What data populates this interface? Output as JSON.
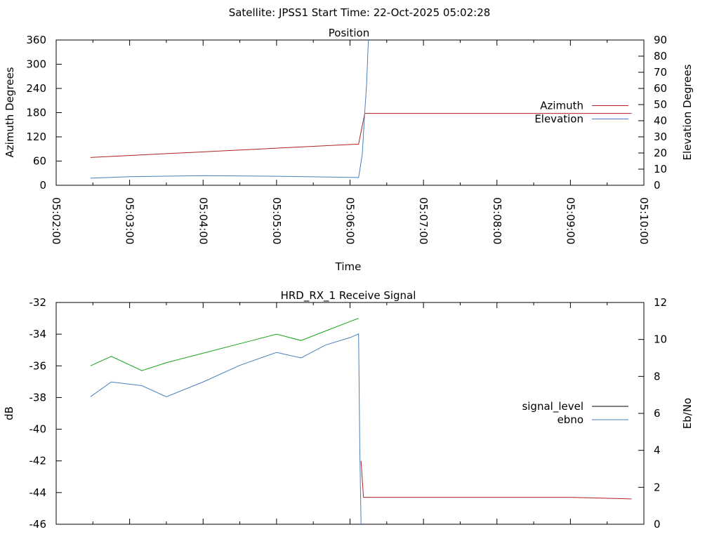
{
  "header": {
    "title": "Satellite: JPSS1    Start Time: 22-Oct-2025 05:02:28"
  },
  "chart_data": [
    {
      "type": "line",
      "title": "Position",
      "xlabel": "Time",
      "x_ticks": [
        "05:02:00",
        "05:03:00",
        "05:04:00",
        "05:05:00",
        "05:06:00",
        "05:07:00",
        "05:08:00",
        "05:09:00",
        "05:10:00"
      ],
      "xlim": [
        "05:02:00",
        "05:10:00"
      ],
      "y_left": {
        "label": "Azimuth Degrees",
        "range": [
          0,
          360
        ],
        "ticks": [
          0,
          60,
          120,
          180,
          240,
          300,
          360
        ]
      },
      "y_right": {
        "label": "Elevation Degrees",
        "range": [
          0,
          90
        ],
        "ticks": [
          0,
          10,
          20,
          30,
          40,
          50,
          60,
          70,
          80,
          90
        ]
      },
      "legend_position": "right",
      "series": [
        {
          "name": "Azimuth",
          "axis": "left",
          "color": "#b22222",
          "points": [
            [
              "05:02:28",
              69
            ],
            [
              "05:06:07",
              102
            ],
            [
              "05:06:12",
              178
            ],
            [
              "05:09:50",
              178
            ]
          ]
        },
        {
          "name": "Elevation",
          "axis": "right",
          "color": "#4a7ebb",
          "points": [
            [
              "05:02:28",
              4.4
            ],
            [
              "05:03:00",
              5.3
            ],
            [
              "05:04:00",
              6.0
            ],
            [
              "05:05:00",
              5.6
            ],
            [
              "05:06:07",
              4.8
            ],
            [
              "05:06:10",
              19
            ],
            [
              "05:06:12",
              45
            ],
            [
              "05:06:13.5",
              62
            ],
            [
              "05:06:15",
              90
            ]
          ]
        }
      ]
    },
    {
      "type": "line",
      "title": "HRD_RX_1 Receive Signal",
      "xlim": [
        "05:02:00",
        "05:10:00"
      ],
      "y_left": {
        "label": "dB",
        "range": [
          -46,
          -32
        ],
        "ticks": [
          -46,
          -44,
          -42,
          -40,
          -38,
          -36,
          -34,
          -32
        ]
      },
      "y_right": {
        "label": "Eb/No",
        "range": [
          0,
          12
        ],
        "ticks": [
          0,
          2,
          4,
          6,
          8,
          10,
          12
        ]
      },
      "legend_position": "right",
      "series": [
        {
          "name": "signal_level",
          "axis": "left",
          "color": "#000000",
          "legend_color": "#000000",
          "points": [
            [
              "05:02:28",
              -36.0
            ],
            [
              "05:02:45",
              -35.4
            ],
            [
              "05:03:10",
              -36.3
            ],
            [
              "05:03:30",
              -35.8
            ],
            [
              "05:04:00",
              -35.2
            ],
            [
              "05:04:30",
              -34.6
            ],
            [
              "05:05:00",
              -34.0
            ],
            [
              "05:05:20",
              -34.4
            ],
            [
              "05:05:40",
              -33.8
            ],
            [
              "05:06:00",
              -33.2
            ],
            [
              "05:06:07",
              -33.0
            ],
            [
              "05:06:09",
              -42.0
            ],
            [
              "05:06:11",
              -44.3
            ],
            [
              "05:07:00",
              -44.3
            ],
            [
              "05:08:00",
              -44.3
            ],
            [
              "05:09:00",
              -44.3
            ],
            [
              "05:09:50",
              -44.4
            ]
          ],
          "segments_color": [
            [
              "05:02:28",
              "05:06:08",
              "#19a319"
            ],
            [
              "05:06:08",
              "05:09:50",
              "#b22222"
            ]
          ]
        },
        {
          "name": "ebno",
          "axis": "right",
          "color": "#4a7ebb",
          "points": [
            [
              "05:02:28",
              6.9
            ],
            [
              "05:02:45",
              7.7
            ],
            [
              "05:03:10",
              7.5
            ],
            [
              "05:03:30",
              6.9
            ],
            [
              "05:04:00",
              7.7
            ],
            [
              "05:04:30",
              8.6
            ],
            [
              "05:05:00",
              9.3
            ],
            [
              "05:05:20",
              9.0
            ],
            [
              "05:05:40",
              9.7
            ],
            [
              "05:06:00",
              10.1
            ],
            [
              "05:06:07",
              10.3
            ],
            [
              "05:06:08",
              4.0
            ],
            [
              "05:06:09",
              0.0
            ]
          ]
        }
      ]
    }
  ]
}
